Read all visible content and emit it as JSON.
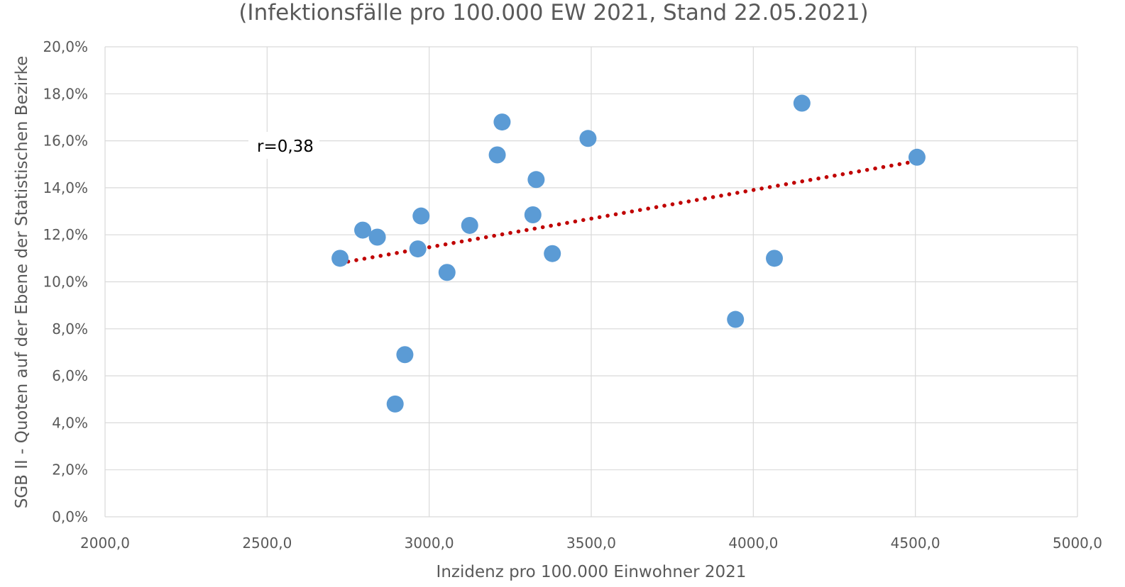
{
  "chart_data": {
    "type": "scatter",
    "title": "(Infektionsfälle pro 100.000 EW 2021, Stand 22.05.2021)",
    "xlabel": "Inzidenz pro 100.000 Einwohner 2021",
    "ylabel": "SGB II - Quoten auf der Ebene der Statistischen Bezirke",
    "xlim": [
      2000,
      5000
    ],
    "ylim": [
      0,
      20
    ],
    "x_ticks": [
      "2000,0",
      "2500,0",
      "3000,0",
      "3500,0",
      "4000,0",
      "4500,0",
      "5000,0"
    ],
    "y_ticks": [
      "0,0%",
      "2,0%",
      "4,0%",
      "6,0%",
      "8,0%",
      "10,0%",
      "12,0%",
      "14,0%",
      "16,0%",
      "18,0%",
      "20,0%"
    ],
    "grid": true,
    "legend": "none",
    "points": [
      {
        "x": 2725,
        "y": 11.0
      },
      {
        "x": 2795,
        "y": 12.2
      },
      {
        "x": 2840,
        "y": 11.9
      },
      {
        "x": 2895,
        "y": 4.8
      },
      {
        "x": 2925,
        "y": 6.9
      },
      {
        "x": 2965,
        "y": 11.4
      },
      {
        "x": 2975,
        "y": 12.8
      },
      {
        "x": 3055,
        "y": 10.4
      },
      {
        "x": 3125,
        "y": 12.4
      },
      {
        "x": 3210,
        "y": 15.4
      },
      {
        "x": 3225,
        "y": 16.8
      },
      {
        "x": 3320,
        "y": 12.85
      },
      {
        "x": 3330,
        "y": 14.35
      },
      {
        "x": 3380,
        "y": 11.2
      },
      {
        "x": 3490,
        "y": 16.1
      },
      {
        "x": 3945,
        "y": 8.4
      },
      {
        "x": 4065,
        "y": 11.0
      },
      {
        "x": 4150,
        "y": 17.6
      },
      {
        "x": 4505,
        "y": 15.3
      }
    ],
    "trendline": {
      "style": "dotted",
      "x0": 2725,
      "y0": 10.8,
      "x1": 4490,
      "y1": 15.1
    },
    "annotation": "r=0,38",
    "colors": {
      "points": "#5B9BD5",
      "trendline": "#C00000",
      "grid": "#D9D9D9",
      "text": "#595959"
    }
  }
}
